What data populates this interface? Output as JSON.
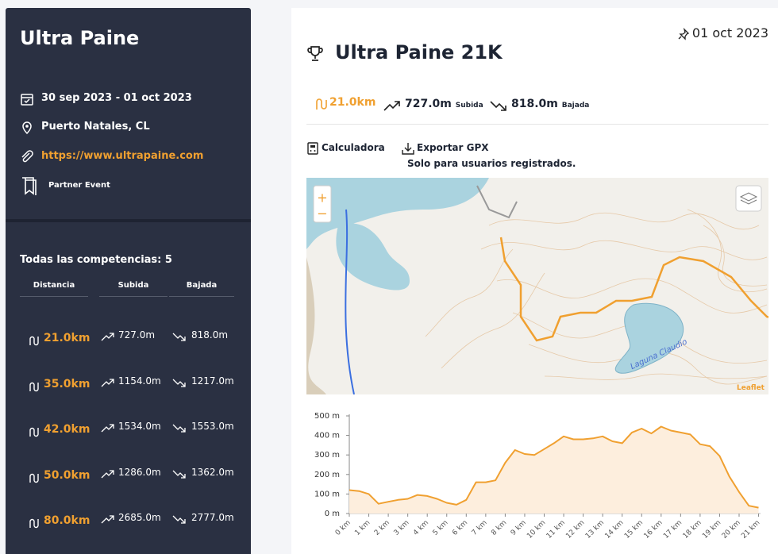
{
  "sidebar": {
    "title": "Ultra Paine",
    "dates": "30 sep 2023 - 01 oct 2023",
    "location": "Puerto Natales, CL",
    "website": "https://www.ultrapaine.com",
    "badge": "Partner Event",
    "competitions_title": "Todas las competencias: 5",
    "columns": [
      "Distancia",
      "Subida",
      "Bajada"
    ],
    "rows": [
      [
        "21.0km",
        "727.0m",
        "818.0m"
      ],
      [
        "35.0km",
        "1154.0m",
        "1217.0m"
      ],
      [
        "42.0km",
        "1534.0m",
        "1553.0m"
      ],
      [
        "50.0km",
        "1286.0m",
        "1362.0m"
      ],
      [
        "80.0km",
        "2685.0m",
        "2777.0m"
      ]
    ]
  },
  "main": {
    "date": "01 oct 2023",
    "title": "Ultra Paine 21K",
    "distance": "21.0km",
    "ascent": "727.0m",
    "ascent_label": "Subida",
    "descent": "818.0m",
    "descent_label": "Bajada",
    "calculator": "Calculadora",
    "export": "Exportar GPX",
    "export_note": "Solo para usuarios registrados.",
    "map": {
      "zoom_in": "+",
      "zoom_out": "−",
      "lake": "Laguna Claudio",
      "attribution": "Leaflet"
    }
  },
  "chart_data": {
    "type": "area",
    "color": "#f0a030",
    "fill": "#fdeedd",
    "x": [
      0,
      0.5,
      1,
      1.5,
      2,
      2.5,
      3,
      3.5,
      4,
      4.5,
      5,
      5.5,
      6,
      6.5,
      7,
      7.5,
      8,
      8.5,
      9,
      9.5,
      10,
      10.5,
      11,
      11.5,
      12,
      12.5,
      13,
      13.5,
      14,
      14.5,
      15,
      15.5,
      16,
      16.5,
      17,
      17.5,
      18,
      18.5,
      19,
      19.5,
      20,
      20.5,
      21
    ],
    "values": [
      120,
      115,
      100,
      50,
      60,
      70,
      75,
      95,
      90,
      75,
      55,
      45,
      70,
      160,
      160,
      170,
      260,
      325,
      305,
      300,
      330,
      360,
      395,
      380,
      380,
      385,
      395,
      370,
      360,
      415,
      435,
      410,
      445,
      425,
      415,
      405,
      355,
      345,
      295,
      190,
      110,
      40,
      30
    ],
    "xlim": [
      0,
      21.1
    ],
    "ylim": [
      0,
      500
    ],
    "xticks": [
      {
        "value": 0,
        "label": "0 km"
      },
      {
        "value": 1,
        "label": "1 km"
      },
      {
        "value": 2,
        "label": "2 km"
      },
      {
        "value": 3,
        "label": "3 km"
      },
      {
        "value": 4,
        "label": "4 km"
      },
      {
        "value": 5,
        "label": "5 km"
      },
      {
        "value": 6,
        "label": "6 km"
      },
      {
        "value": 7,
        "label": "7 km"
      },
      {
        "value": 8,
        "label": "8 km"
      },
      {
        "value": 9,
        "label": "9 km"
      },
      {
        "value": 10,
        "label": "10 km"
      },
      {
        "value": 11,
        "label": "11 km"
      },
      {
        "value": 12,
        "label": "12 km"
      },
      {
        "value": 13,
        "label": "13 km"
      },
      {
        "value": 14,
        "label": "14 km"
      },
      {
        "value": 15,
        "label": "15 km"
      },
      {
        "value": 16,
        "label": "16 km"
      },
      {
        "value": 17,
        "label": "17 km"
      },
      {
        "value": 18,
        "label": "18 km"
      },
      {
        "value": 19,
        "label": "19 km"
      },
      {
        "value": 20,
        "label": "20 km"
      },
      {
        "value": 21,
        "label": "21 km"
      }
    ],
    "yticks": [
      {
        "value": 0,
        "label": "0 m"
      },
      {
        "value": 100,
        "label": "100 m"
      },
      {
        "value": 200,
        "label": "200 m"
      },
      {
        "value": 300,
        "label": "300 m"
      },
      {
        "value": 400,
        "label": "400 m"
      },
      {
        "value": 500,
        "label": "500 m"
      }
    ]
  }
}
